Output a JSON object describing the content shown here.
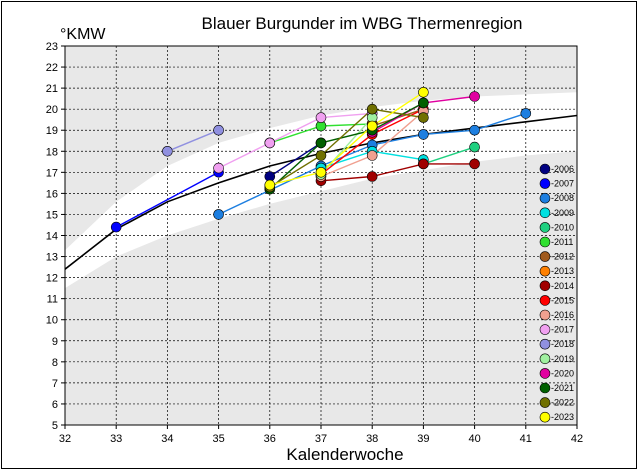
{
  "chart_data": {
    "type": "line",
    "title": "Blauer Burgunder im WBG Thermenregion",
    "ylabel": "°KMW",
    "xlabel": "Kalenderwoche",
    "xlim": [
      32,
      42
    ],
    "ylim": [
      5,
      23
    ],
    "xticks": [
      "32",
      "33",
      "34",
      "35",
      "36",
      "37",
      "38",
      "39",
      "40",
      "41",
      "42"
    ],
    "yticks": [
      "5",
      "6",
      "7",
      "8",
      "9",
      "10",
      "11",
      "12",
      "13",
      "14",
      "15",
      "16",
      "17",
      "18",
      "19",
      "20",
      "21",
      "22",
      "23"
    ],
    "grid": true,
    "legend_position": "right",
    "trend": {
      "x": [
        32,
        33,
        34,
        35,
        36,
        37,
        38,
        39,
        40,
        41,
        42
      ],
      "y": [
        12.4,
        14.3,
        15.6,
        16.5,
        17.3,
        17.9,
        18.4,
        18.8,
        19.1,
        19.4,
        19.7
      ]
    },
    "band_upper": {
      "x": [
        32,
        33,
        34,
        35,
        36,
        37,
        38,
        39,
        40,
        41,
        42
      ],
      "y": [
        13.3,
        15.6,
        17.3,
        18.4,
        19.1,
        19.7,
        20.1,
        20.4,
        20.6,
        20.7,
        20.8
      ]
    },
    "band_lower": {
      "x": [
        32,
        33,
        34,
        35,
        36,
        37,
        38,
        39,
        40,
        41,
        42
      ],
      "y": [
        11.5,
        13.0,
        14.0,
        14.8,
        15.5,
        16.1,
        16.7,
        17.1,
        17.5,
        17.8,
        18.0
      ]
    },
    "series": [
      {
        "name": "2006",
        "color": "#000080",
        "points": [
          [
            36,
            16.8
          ],
          [
            37,
            18.4
          ]
        ]
      },
      {
        "name": "2007",
        "color": "#0000ff",
        "points": [
          [
            33,
            14.4
          ],
          [
            35,
            17.0
          ]
        ]
      },
      {
        "name": "2008",
        "color": "#1e7fe0",
        "points": [
          [
            35,
            15.0
          ],
          [
            37,
            17.3
          ],
          [
            38,
            18.3
          ],
          [
            39,
            18.8
          ],
          [
            40,
            19.0
          ],
          [
            41,
            19.8
          ]
        ]
      },
      {
        "name": "2009",
        "color": "#00e0e0",
        "points": [
          [
            37,
            17.2
          ],
          [
            38,
            18.0
          ],
          [
            39,
            17.6
          ]
        ]
      },
      {
        "name": "2010",
        "color": "#20d080",
        "points": [
          [
            39,
            17.4
          ],
          [
            40,
            18.2
          ]
        ]
      },
      {
        "name": "2011",
        "color": "#30e030",
        "points": [
          [
            36,
            18.4
          ],
          [
            37,
            19.2
          ],
          [
            38,
            19.3
          ]
        ]
      },
      {
        "name": "2012",
        "color": "#a05a1e",
        "points": [
          [
            38,
            19.2
          ],
          [
            39,
            20.0
          ]
        ]
      },
      {
        "name": "2013",
        "color": "#ff8000",
        "points": [
          [
            38,
            19.3
          ]
        ]
      },
      {
        "name": "2014",
        "color": "#a00000",
        "points": [
          [
            37,
            16.6
          ],
          [
            38,
            16.8
          ],
          [
            39,
            17.4
          ],
          [
            40,
            17.4
          ]
        ]
      },
      {
        "name": "2015",
        "color": "#ff0000",
        "points": [
          [
            37,
            16.9
          ],
          [
            38,
            18.8
          ],
          [
            39,
            20.0
          ]
        ]
      },
      {
        "name": "2016",
        "color": "#f0a090",
        "points": [
          [
            37,
            16.8
          ],
          [
            38,
            17.8
          ],
          [
            39,
            19.9
          ]
        ]
      },
      {
        "name": "2017",
        "color": "#f0a0f0",
        "points": [
          [
            35,
            17.2
          ],
          [
            36,
            18.4
          ],
          [
            37,
            19.6
          ],
          [
            38,
            19.8
          ]
        ]
      },
      {
        "name": "2018",
        "color": "#9090e0",
        "points": [
          [
            34,
            18.0
          ],
          [
            35,
            19.0
          ]
        ]
      },
      {
        "name": "2019",
        "color": "#a0f0a0",
        "points": [
          [
            37,
            16.9
          ],
          [
            38,
            19.6
          ]
        ]
      },
      {
        "name": "2020",
        "color": "#e000a0",
        "points": [
          [
            38,
            18.9
          ],
          [
            39,
            20.3
          ],
          [
            40,
            20.6
          ]
        ]
      },
      {
        "name": "2021",
        "color": "#006000",
        "points": [
          [
            36,
            16.2
          ],
          [
            37,
            18.4
          ],
          [
            38,
            19.0
          ],
          [
            39,
            20.3
          ]
        ]
      },
      {
        "name": "2022",
        "color": "#707000",
        "points": [
          [
            36,
            16.3
          ],
          [
            37,
            17.8
          ],
          [
            38,
            20.0
          ],
          [
            39,
            19.6
          ]
        ]
      },
      {
        "name": "2023",
        "color": "#ffff00",
        "points": [
          [
            36,
            16.4
          ],
          [
            37,
            17.0
          ],
          [
            38,
            19.2
          ],
          [
            39,
            20.8
          ]
        ]
      }
    ]
  }
}
